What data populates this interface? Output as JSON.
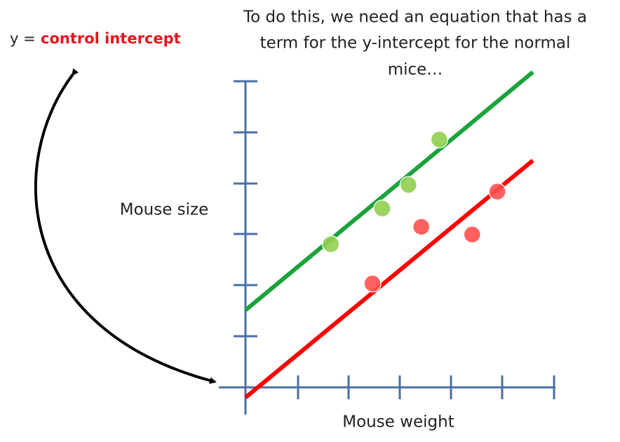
{
  "chart_data": {
    "type": "scatter",
    "title_lines": [
      "To do this, we need an equation that has a",
      "term for the y-intercept for the normal",
      "mice…"
    ],
    "annotation": {
      "prefix": "y =",
      "highlight": "control intercept"
    },
    "x_label": "Mouse weight",
    "y_label": "Mouse size",
    "xlim": [
      -0.52,
      6.03
    ],
    "ylim": [
      -0.5,
      6.0
    ],
    "series": [
      {
        "color": "#92d050",
        "x": [
          1.66,
          2.66,
          3.17,
          3.77
        ],
        "values": [
          2.81,
          3.51,
          3.97,
          4.86
        ]
      },
      {
        "color": "#ff5050",
        "x": [
          2.47,
          3.42,
          4.41,
          4.9
        ],
        "values": [
          2.04,
          3.15,
          3.0,
          3.84
        ]
      }
    ],
    "lines": [
      {
        "color": "#1aa33a",
        "x": [
          0,
          5.59
        ],
        "values": [
          1.52,
          6.18
        ]
      },
      {
        "color": "#ff0000",
        "x": [
          0,
          5.59
        ],
        "values": [
          -0.19,
          4.45
        ]
      }
    ]
  }
}
